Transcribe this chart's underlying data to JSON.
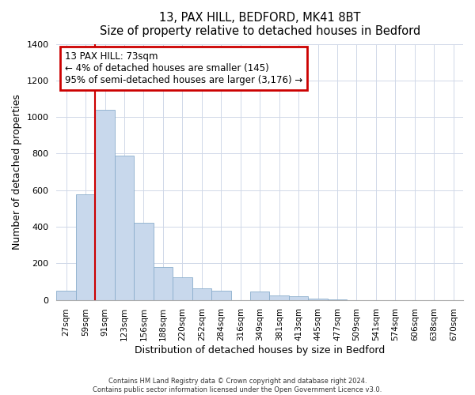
{
  "title": "13, PAX HILL, BEDFORD, MK41 8BT",
  "subtitle": "Size of property relative to detached houses in Bedford",
  "xlabel": "Distribution of detached houses by size in Bedford",
  "ylabel": "Number of detached properties",
  "bar_labels": [
    "27sqm",
    "59sqm",
    "91sqm",
    "123sqm",
    "156sqm",
    "188sqm",
    "220sqm",
    "252sqm",
    "284sqm",
    "316sqm",
    "349sqm",
    "381sqm",
    "413sqm",
    "445sqm",
    "477sqm",
    "509sqm",
    "541sqm",
    "574sqm",
    "606sqm",
    "638sqm",
    "670sqm"
  ],
  "bar_values": [
    50,
    575,
    1040,
    790,
    420,
    180,
    125,
    62,
    50,
    0,
    47,
    25,
    18,
    8,
    3,
    0,
    0,
    0,
    0,
    0,
    0
  ],
  "bar_color": "#c8d8ec",
  "bar_edge_color": "#8aadcc",
  "vline_color": "#cc0000",
  "vline_x_data": 1.5,
  "annotation_title": "13 PAX HILL: 73sqm",
  "annotation_line1": "← 4% of detached houses are smaller (145)",
  "annotation_line2": "95% of semi-detached houses are larger (3,176) →",
  "annotation_box_color": "#ffffff",
  "annotation_box_edge": "#cc0000",
  "ylim": [
    0,
    1400
  ],
  "yticks": [
    0,
    200,
    400,
    600,
    800,
    1000,
    1200,
    1400
  ],
  "grid_color": "#d0d8e8",
  "footer1": "Contains HM Land Registry data © Crown copyright and database right 2024.",
  "footer2": "Contains public sector information licensed under the Open Government Licence v3.0."
}
